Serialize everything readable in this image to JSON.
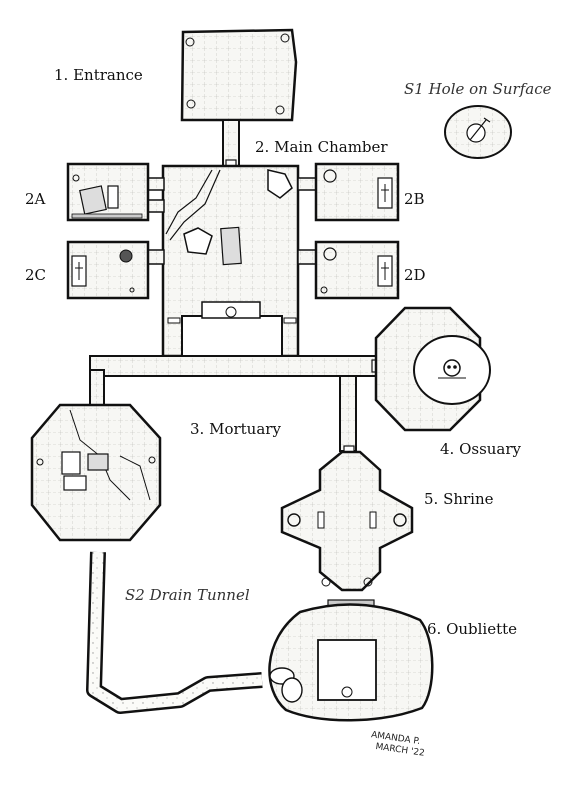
{
  "labels": {
    "entrance": "1. Entrance",
    "main_chamber": "2. Main Chamber",
    "room_2a": "2A",
    "room_2b": "2B",
    "room_2c": "2C",
    "room_2d": "2D",
    "mortuary": "3. Mortuary",
    "ossuary": "4. Ossuary",
    "shrine": "5. Shrine",
    "oubliette": "6. Oubliette",
    "s1_hole": "S1 Hole on Surface",
    "s2_drain": "S2 Drain Tunnel"
  },
  "signature": {
    "name": "AMANDA P.",
    "date": "MARCH '22"
  },
  "colors": {
    "ink": "#111111",
    "floor": "#f7f7f4",
    "wall_fill": "#ffffff"
  }
}
